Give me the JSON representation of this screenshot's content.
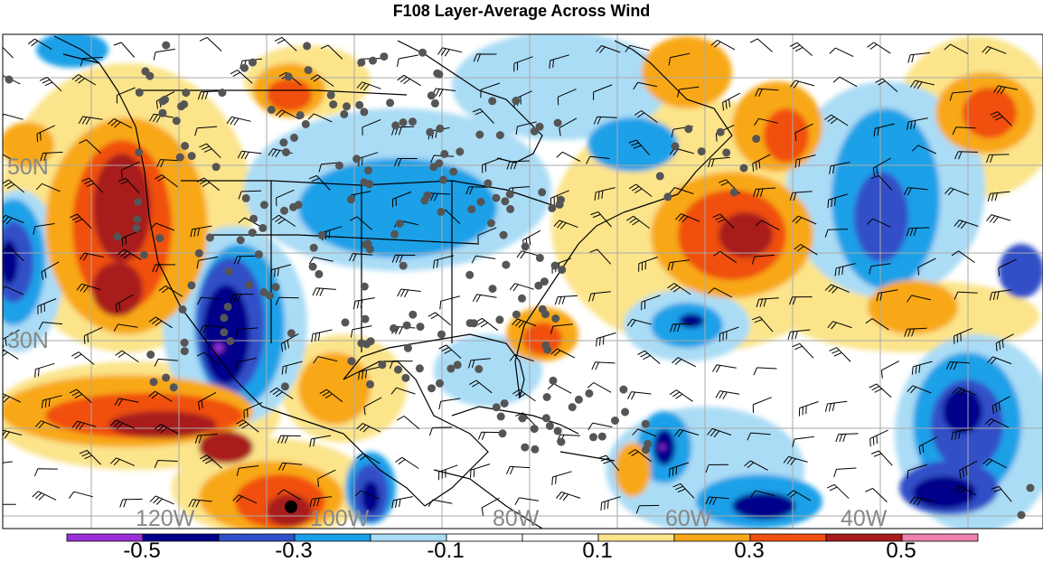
{
  "title": "F108 Layer-Average Across Wind",
  "grid": {
    "lat_labels": [
      "50N",
      "30N"
    ],
    "lon_labels": [
      "120W",
      "100W",
      "80W",
      "60W",
      "40W"
    ]
  },
  "colorbar": {
    "colors": [
      "#9b30d8",
      "#00008b",
      "#3050c8",
      "#1aa0e8",
      "#aadcf5",
      "#ffffff",
      "#ffffff",
      "#fbe48a",
      "#f8a818",
      "#f05010",
      "#a81c1c",
      "#f080b0"
    ],
    "labels": [
      "-0.5",
      "-0.3",
      "-0.1",
      "0.1",
      "0.3",
      "0.5"
    ]
  },
  "fields": {
    "colors": {
      "dark_red": "#a81c1c",
      "red": "#f05010",
      "orange": "#f8a818",
      "yellow": "#fbe48a",
      "light_blue": "#aadcf5",
      "cyan": "#1aa0e8",
      "blue": "#3050c8",
      "navy": "#00008b",
      "purple": "#9b30d8"
    }
  },
  "stations": {
    "color": "#555555",
    "highlight_color": "#000000"
  }
}
